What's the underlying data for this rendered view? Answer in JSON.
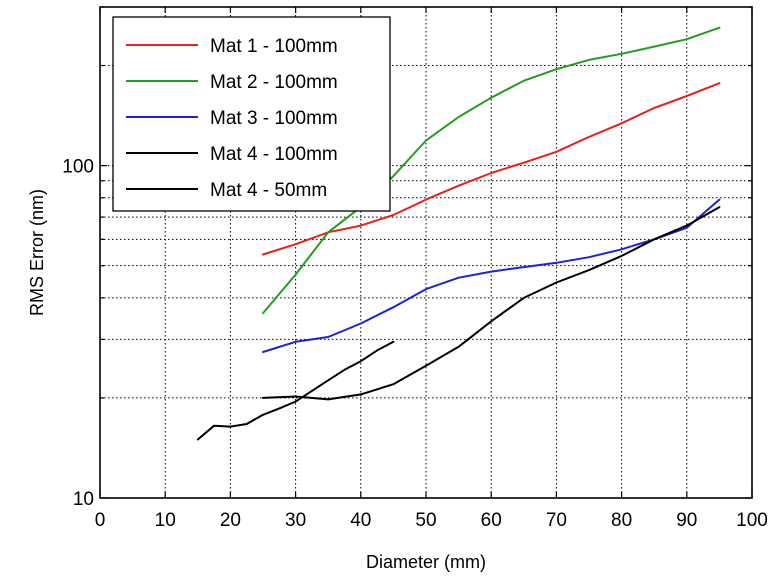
{
  "chart_data": {
    "type": "line",
    "title": "",
    "xlabel": "Diameter (mm)",
    "ylabel": "RMS Error (nm)",
    "x_scale": "linear",
    "y_scale": "log",
    "xlim": [
      0,
      100
    ],
    "ylim": [
      10,
      300
    ],
    "x_ticks": [
      0,
      10,
      20,
      30,
      40,
      50,
      60,
      70,
      80,
      90,
      100
    ],
    "y_tick_labels": [
      {
        "value": 10,
        "label": "10"
      },
      {
        "value": 100,
        "label": "100"
      }
    ],
    "grid": true,
    "legend_position": "top-left",
    "series": [
      {
        "name": "Mat 1 - 100mm",
        "color": "#e8201e",
        "x": [
          25,
          30,
          35,
          40,
          45,
          50,
          55,
          60,
          65,
          70,
          75,
          80,
          85,
          90,
          95
        ],
        "y": [
          54,
          58,
          63,
          66,
          71,
          79,
          87,
          95,
          102,
          110,
          122,
          134,
          149,
          162,
          177
        ]
      },
      {
        "name": "Mat 2 - 100mm",
        "color": "#1f9e1f",
        "x": [
          25,
          30,
          35,
          40,
          45,
          50,
          55,
          60,
          65,
          70,
          75,
          80,
          85,
          90,
          95
        ],
        "y": [
          36,
          47,
          63,
          75,
          93,
          119,
          140,
          160,
          180,
          195,
          208,
          217,
          228,
          240,
          260
        ]
      },
      {
        "name": "Mat 3 - 100mm",
        "color": "#1e22d6",
        "x": [
          25,
          30,
          35,
          40,
          45,
          50,
          55,
          60,
          65,
          70,
          75,
          80,
          85,
          90,
          95
        ],
        "y": [
          27.5,
          29.5,
          30.5,
          33.5,
          37.5,
          42.5,
          46,
          48,
          49.5,
          51,
          53,
          56,
          60,
          65,
          79
        ]
      },
      {
        "name": "Mat 4 - 100mm",
        "color": "#000000",
        "x": [
          25,
          30,
          35,
          40,
          45,
          50,
          55,
          60,
          65,
          70,
          75,
          80,
          85,
          90,
          95
        ],
        "y": [
          20,
          20.2,
          19.8,
          20.5,
          22,
          25,
          28.5,
          34,
          40,
          44.5,
          48.5,
          53.5,
          60,
          66,
          75
        ]
      },
      {
        "name": "Mat 4 - 50mm",
        "color": "#000000",
        "x": [
          15,
          17.5,
          20,
          22.5,
          25,
          27.5,
          30,
          32.5,
          35,
          37.5,
          40,
          42.5,
          45
        ],
        "y": [
          15,
          16.5,
          16.4,
          16.7,
          17.8,
          18.6,
          19.5,
          21,
          22.6,
          24.3,
          25.8,
          27.8,
          29.5
        ]
      }
    ]
  }
}
